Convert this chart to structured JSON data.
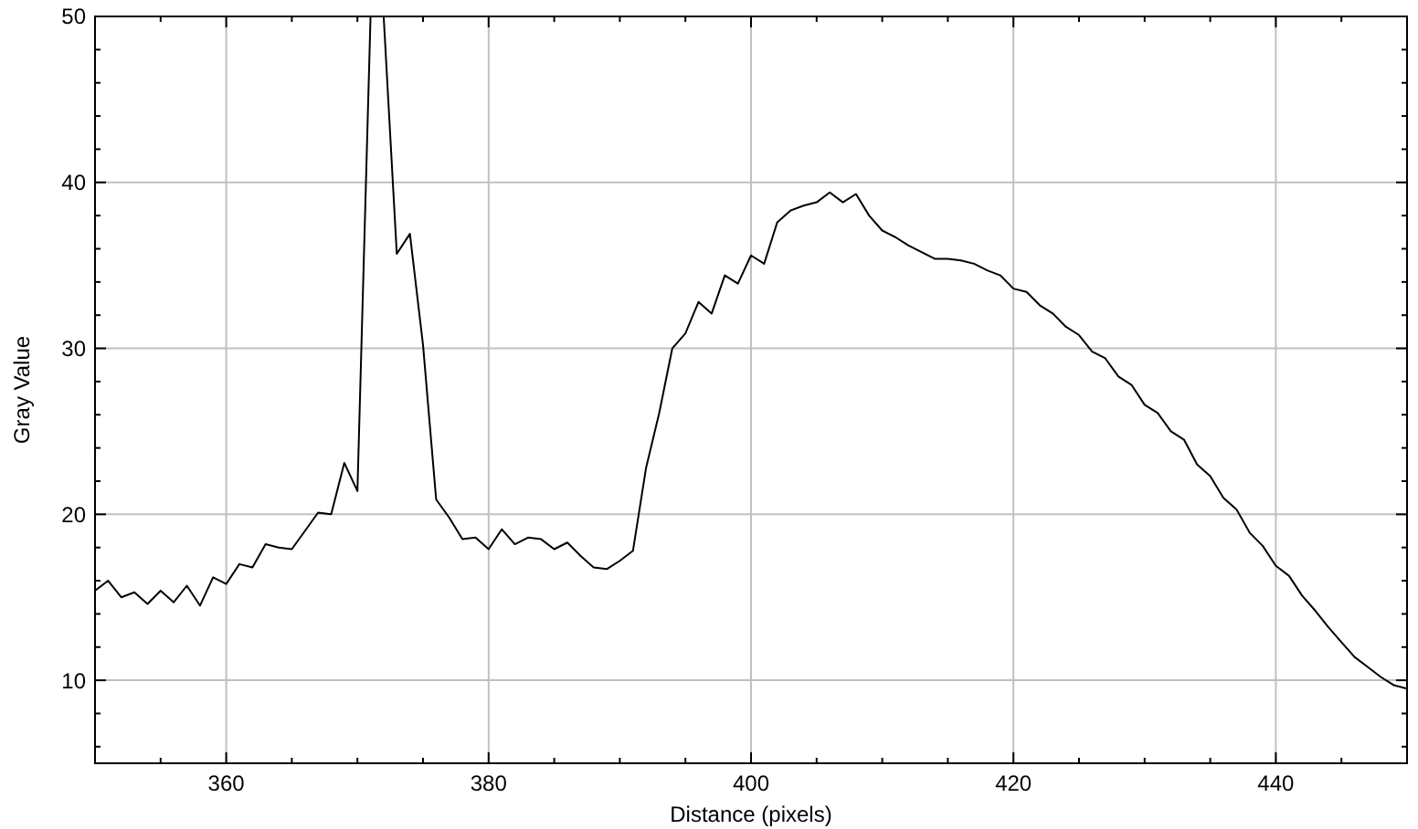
{
  "chart_data": {
    "type": "line",
    "xlabel": "Distance (pixels)",
    "ylabel": "Gray Value",
    "x": [
      350,
      351,
      352,
      353,
      354,
      355,
      356,
      357,
      358,
      359,
      360,
      361,
      362,
      363,
      364,
      365,
      366,
      367,
      368,
      369,
      370,
      371,
      372,
      373,
      374,
      375,
      376,
      377,
      378,
      379,
      380,
      381,
      382,
      383,
      384,
      385,
      386,
      387,
      388,
      389,
      390,
      391,
      392,
      393,
      394,
      395,
      396,
      397,
      398,
      399,
      400,
      401,
      402,
      403,
      404,
      405,
      406,
      407,
      408,
      409,
      410,
      411,
      412,
      413,
      414,
      415,
      416,
      417,
      418,
      419,
      420,
      421,
      422,
      423,
      424,
      425,
      426,
      427,
      428,
      429,
      430,
      431,
      432,
      433,
      434,
      435,
      436,
      437,
      438,
      439,
      440,
      441,
      442,
      443,
      444,
      445,
      446,
      447,
      448,
      449,
      450
    ],
    "series": [
      {
        "color": "#000000",
        "values": [
          15.4,
          16.0,
          15.0,
          15.3,
          14.6,
          15.4,
          14.7,
          15.7,
          14.5,
          16.2,
          15.8,
          17.0,
          16.8,
          18.2,
          18.0,
          17.9,
          19.0,
          20.1,
          20.0,
          23.1,
          21.4,
          50,
          50,
          35.7,
          36.9,
          30.2,
          20.9,
          19.8,
          18.5,
          18.6,
          17.9,
          19.1,
          18.2,
          18.6,
          18.5,
          17.9,
          18.3,
          17.5,
          16.8,
          16.7,
          17.2,
          17.8,
          22.8,
          26.1,
          30.0,
          30.9,
          32.8,
          32.1,
          34.4,
          33.9,
          35.6,
          35.1,
          37.6,
          38.3,
          38.6,
          38.8,
          39.4,
          38.8,
          39.3,
          38.0,
          37.1,
          36.7,
          36.2,
          35.8,
          35.4,
          35.4,
          35.3,
          35.1,
          34.7,
          34.4,
          33.6,
          33.4,
          32.6,
          32.1,
          31.3,
          30.8,
          29.8,
          29.4,
          28.3,
          27.8,
          26.6,
          26.1,
          25.0,
          24.5,
          23.0,
          22.3,
          21.0,
          20.3,
          18.9,
          18.1,
          16.9,
          16.3,
          15.1,
          14.2,
          13.2,
          12.3,
          11.4,
          10.8,
          10.2,
          9.7,
          9.5
        ]
      }
    ],
    "xlim": [
      350,
      450
    ],
    "xticks": [
      {
        "value": 355,
        "label": null
      },
      360,
      {
        "value": 365,
        "label": null
      },
      {
        "value": 370,
        "label": null
      },
      {
        "value": 375,
        "label": null
      },
      380,
      {
        "value": 385,
        "label": null
      },
      {
        "value": 390,
        "label": null
      },
      {
        "value": 395,
        "label": null
      },
      400,
      {
        "value": 405,
        "label": null
      },
      {
        "value": 410,
        "label": null
      },
      {
        "value": 415,
        "label": null
      },
      420,
      {
        "value": 425,
        "label": null
      },
      {
        "value": 430,
        "label": null
      },
      {
        "value": 435,
        "label": null
      },
      440,
      {
        "value": 445,
        "label": null
      }
    ],
    "ylim": [
      5,
      50
    ],
    "yticks": [
      {
        "value": 6,
        "label": null
      },
      {
        "value": 8,
        "label": null
      },
      10,
      {
        "value": 12,
        "label": null
      },
      {
        "value": 14,
        "label": null
      },
      {
        "value": 16,
        "label": null
      },
      {
        "value": 18,
        "label": null
      },
      20,
      {
        "value": 22,
        "label": null
      },
      {
        "value": 24,
        "label": null
      },
      {
        "value": 26,
        "label": null
      },
      {
        "value": 28,
        "label": null
      },
      30,
      {
        "value": 32,
        "label": null
      },
      {
        "value": 34,
        "label": null
      },
      {
        "value": 36,
        "label": null
      },
      {
        "value": 38,
        "label": null
      },
      40,
      {
        "value": 42,
        "label": null
      },
      {
        "value": 44,
        "label": null
      },
      {
        "value": 46,
        "label": null
      },
      {
        "value": 48,
        "label": null
      },
      50
    ],
    "grid": true,
    "marker": "none",
    "line_style": "solid"
  }
}
